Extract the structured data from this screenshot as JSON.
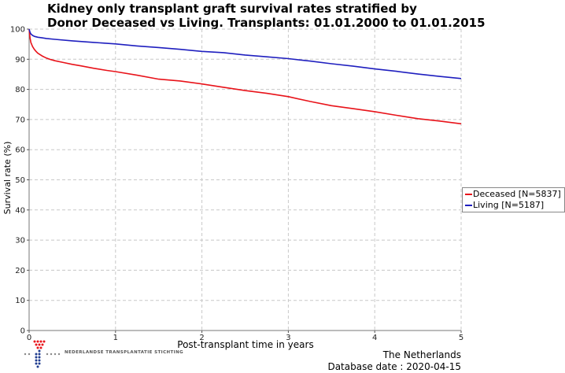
{
  "chart_data": {
    "type": "line",
    "title_line1": "Kidney only transplant graft survival rates stratified by",
    "title_line2": "Donor Deceased vs Living. Transplants: 01.01.2000 to 01.01.2015",
    "xlabel": "Post-transplant time in years",
    "ylabel": "Survival rate (%)",
    "xlim": [
      0,
      5
    ],
    "ylim": [
      0,
      100
    ],
    "xticks": [
      "0",
      "1",
      "2",
      "3",
      "4",
      "5"
    ],
    "yticks": [
      "0",
      "10",
      "20",
      "30",
      "40",
      "50",
      "60",
      "70",
      "80",
      "90",
      "100"
    ],
    "grid": true,
    "legend_position": "right",
    "series": [
      {
        "name": "Deceased [N=5837]",
        "color": "#e8131a",
        "x": [
          0,
          0.01,
          0.02,
          0.04,
          0.06,
          0.08,
          0.1,
          0.15,
          0.2,
          0.25,
          0.3,
          0.4,
          0.5,
          0.6,
          0.75,
          0.9,
          1.0,
          1.25,
          1.5,
          1.75,
          2.0,
          2.25,
          2.5,
          2.75,
          3.0,
          3.25,
          3.5,
          3.75,
          4.0,
          4.25,
          4.5,
          4.75,
          5.0
        ],
        "y": [
          100,
          97.2,
          95.6,
          94.2,
          93.3,
          92.6,
          92.0,
          91.1,
          90.4,
          89.9,
          89.5,
          88.9,
          88.3,
          87.8,
          87.0,
          86.3,
          85.9,
          84.7,
          83.4,
          82.8,
          81.8,
          80.7,
          79.6,
          78.7,
          77.6,
          76.0,
          74.6,
          73.6,
          72.6,
          71.4,
          70.3,
          69.5,
          68.6
        ]
      },
      {
        "name": "Living [N=5187]",
        "color": "#1f1fbf",
        "x": [
          0,
          0.01,
          0.02,
          0.04,
          0.06,
          0.1,
          0.15,
          0.2,
          0.3,
          0.5,
          0.75,
          1.0,
          1.25,
          1.5,
          1.75,
          2.0,
          2.25,
          2.5,
          2.75,
          3.0,
          3.25,
          3.5,
          3.75,
          4.0,
          4.25,
          4.5,
          4.75,
          5.0
        ],
        "y": [
          100,
          99.0,
          98.4,
          97.9,
          97.6,
          97.3,
          97.1,
          96.9,
          96.6,
          96.1,
          95.6,
          95.1,
          94.4,
          93.9,
          93.3,
          92.6,
          92.2,
          91.4,
          90.8,
          90.2,
          89.4,
          88.5,
          87.7,
          86.8,
          86.0,
          85.1,
          84.3,
          83.6
        ]
      }
    ]
  },
  "logo": {
    "text": "NEDERLANDSE TRANSPLANTATIE STICHTING",
    "dot_colors": [
      "#e8131a",
      "#1f3c8f",
      "#888888"
    ]
  },
  "footer": {
    "country": "The Netherlands",
    "database_date": "Database date : 2020-04-15"
  }
}
